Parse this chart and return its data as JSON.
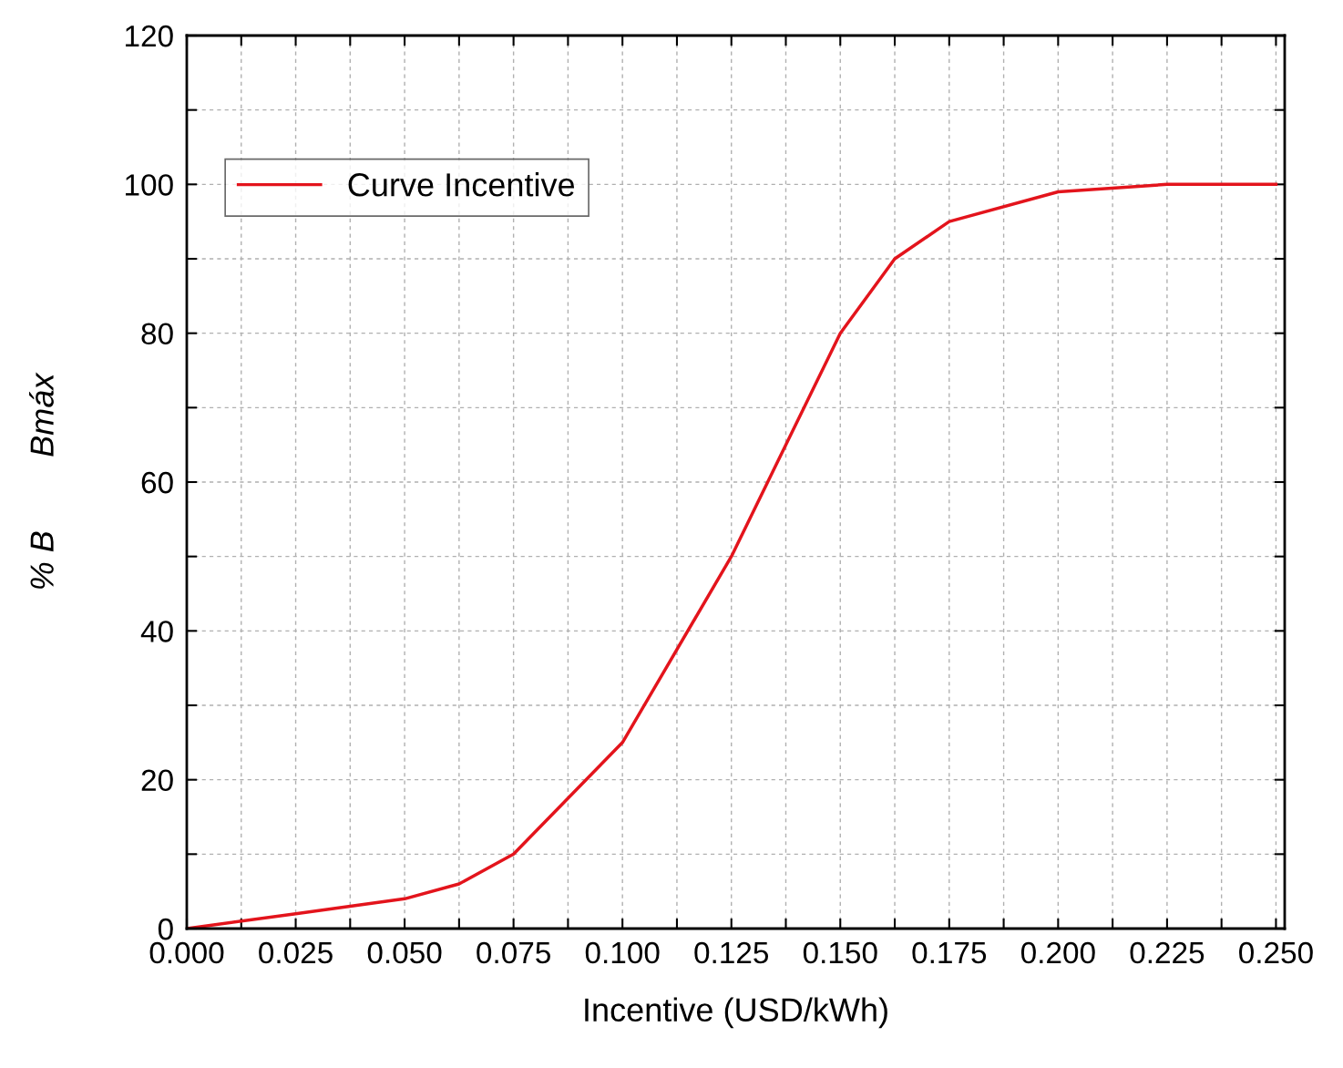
{
  "chart_data": {
    "type": "line",
    "xlabel": "Incentive (USD/kWh)",
    "ylabel": "% B        Bmáx",
    "x": [
      0,
      0.025,
      0.05,
      0.0625,
      0.075,
      0.1,
      0.125,
      0.15,
      0.1625,
      0.175,
      0.2,
      0.225,
      0.25
    ],
    "series": [
      {
        "name": "Curve Incentive",
        "color": "#e3141c",
        "values": [
          0,
          2,
          4,
          6,
          10,
          25,
          50,
          80,
          90,
          95,
          99,
          100,
          100
        ]
      }
    ],
    "xlim": [
      0,
      0.252
    ],
    "ylim": [
      0,
      120
    ],
    "xticks": [
      {
        "value": 0,
        "label": "0.000"
      },
      {
        "value": 0.0125,
        "label": null
      },
      {
        "value": 0.025,
        "label": "0.025"
      },
      {
        "value": 0.0375,
        "label": null
      },
      {
        "value": 0.05,
        "label": "0.050"
      },
      {
        "value": 0.0625,
        "label": null
      },
      {
        "value": 0.075,
        "label": "0.075"
      },
      {
        "value": 0.0875,
        "label": null
      },
      {
        "value": 0.1,
        "label": "0.100"
      },
      {
        "value": 0.1125,
        "label": null
      },
      {
        "value": 0.125,
        "label": "0.125"
      },
      {
        "value": 0.1375,
        "label": null
      },
      {
        "value": 0.15,
        "label": "0.150"
      },
      {
        "value": 0.1625,
        "label": null
      },
      {
        "value": 0.175,
        "label": "0.175"
      },
      {
        "value": 0.1875,
        "label": null
      },
      {
        "value": 0.2,
        "label": "0.200"
      },
      {
        "value": 0.2125,
        "label": null
      },
      {
        "value": 0.225,
        "label": "0.225"
      },
      {
        "value": 0.2375,
        "label": null
      },
      {
        "value": 0.25,
        "label": "0.250"
      }
    ],
    "yticks": [
      0,
      {
        "value": 10,
        "label": null
      },
      20,
      {
        "value": 30,
        "label": null
      },
      40,
      {
        "value": 50,
        "label": null
      },
      60,
      {
        "value": 70,
        "label": null
      },
      80,
      {
        "value": 90,
        "label": null
      },
      100,
      {
        "value": 110,
        "label": null
      },
      120
    ],
    "grid": true,
    "legend": "top left",
    "marker": "none",
    "line_style": "solid"
  }
}
